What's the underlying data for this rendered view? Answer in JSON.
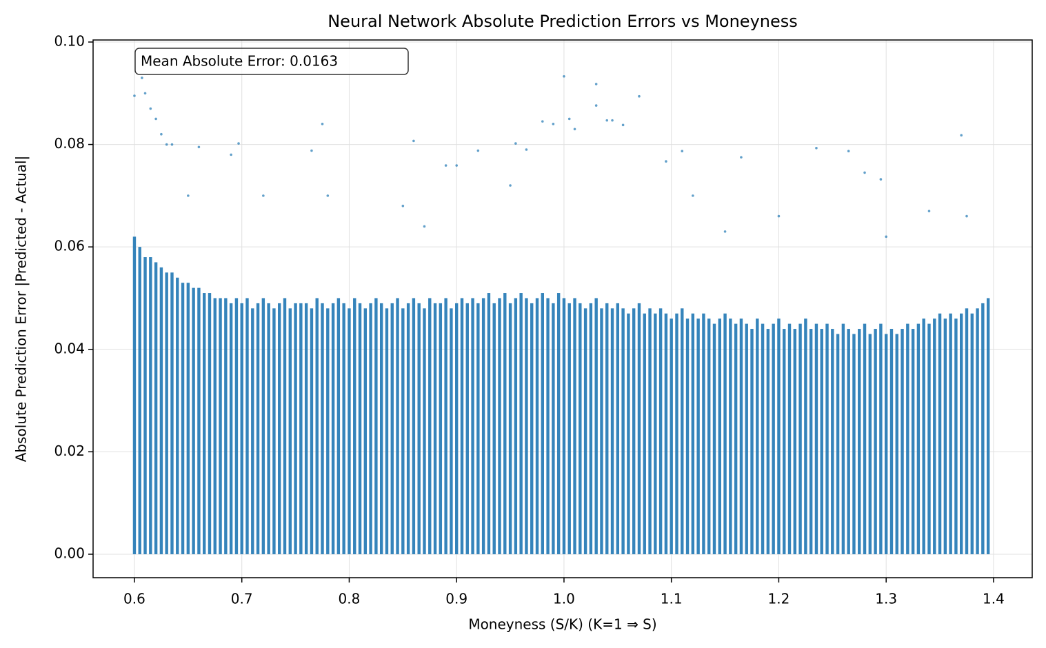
{
  "chart_data": {
    "type": "scatter",
    "title": "Neural Network Absolute Prediction Errors vs Moneyness",
    "x_label": "Moneyness (S/K)  (K=1 ⇒ S)",
    "y_label": "Absolute Prediction Error |Predicted - Actual|",
    "annotation": "Mean Absolute Error: 0.0163",
    "color": "#1f77b4",
    "grid": true,
    "xlim": [
      0.5615,
      1.436
    ],
    "ylim": [
      -0.00458,
      0.1004
    ],
    "xticks": [
      0.6,
      0.7,
      0.8,
      0.9,
      {
        "value": 1,
        "label": "1.0"
      },
      1.1,
      1.2,
      1.3,
      1.4
    ],
    "yticks": [
      {
        "value": 0,
        "label": "0.00"
      },
      {
        "value": 0.02,
        "label": "0.02"
      },
      {
        "value": 0.04,
        "label": "0.04"
      },
      {
        "value": 0.06,
        "label": "0.06"
      },
      {
        "value": 0.08,
        "label": "0.08"
      },
      {
        "value": 0.1,
        "label": "0.10"
      }
    ],
    "bands": {
      "x": [
        0.6,
        0.605,
        0.61,
        0.615,
        0.62,
        0.625,
        0.63,
        0.635,
        0.64,
        0.645,
        0.65,
        0.655,
        0.66,
        0.665,
        0.67,
        0.675,
        0.68,
        0.685,
        0.69,
        0.695,
        0.7,
        0.705,
        0.71,
        0.715,
        0.72,
        0.725,
        0.73,
        0.735,
        0.74,
        0.745,
        0.75,
        0.755,
        0.76,
        0.765,
        0.77,
        0.775,
        0.78,
        0.785,
        0.79,
        0.795,
        0.8,
        0.805,
        0.81,
        0.815,
        0.82,
        0.825,
        0.83,
        0.835,
        0.84,
        0.845,
        0.85,
        0.855,
        0.86,
        0.865,
        0.87,
        0.875,
        0.88,
        0.885,
        0.89,
        0.895,
        0.9,
        0.905,
        0.91,
        0.915,
        0.92,
        0.925,
        0.93,
        0.935,
        0.94,
        0.945,
        0.95,
        0.955,
        0.96,
        0.965,
        0.97,
        0.975,
        0.98,
        0.985,
        0.99,
        0.995,
        1.0,
        1.005,
        1.01,
        1.015,
        1.02,
        1.025,
        1.03,
        1.035,
        1.04,
        1.045,
        1.05,
        1.055,
        1.06,
        1.065,
        1.07,
        1.075,
        1.08,
        1.085,
        1.09,
        1.095,
        1.1,
        1.105,
        1.11,
        1.115,
        1.12,
        1.125,
        1.13,
        1.135,
        1.14,
        1.145,
        1.15,
        1.155,
        1.16,
        1.165,
        1.17,
        1.175,
        1.18,
        1.185,
        1.19,
        1.195,
        1.2,
        1.205,
        1.21,
        1.215,
        1.22,
        1.225,
        1.23,
        1.235,
        1.24,
        1.245,
        1.25,
        1.255,
        1.26,
        1.265,
        1.27,
        1.275,
        1.28,
        1.285,
        1.29,
        1.295,
        1.3,
        1.305,
        1.31,
        1.315,
        1.32,
        1.325,
        1.33,
        1.335,
        1.34,
        1.345,
        1.35,
        1.355,
        1.36,
        1.365,
        1.37,
        1.375,
        1.38,
        1.385,
        1.39,
        1.395
      ],
      "values": [
        0.062,
        0.06,
        0.058,
        0.058,
        0.057,
        0.056,
        0.055,
        0.055,
        0.054,
        0.053,
        0.053,
        0.052,
        0.052,
        0.051,
        0.051,
        0.05,
        0.05,
        0.05,
        0.049,
        0.05,
        0.049,
        0.05,
        0.048,
        0.049,
        0.05,
        0.049,
        0.048,
        0.049,
        0.05,
        0.048,
        0.049,
        0.049,
        0.049,
        0.048,
        0.05,
        0.049,
        0.048,
        0.049,
        0.05,
        0.049,
        0.048,
        0.05,
        0.049,
        0.048,
        0.049,
        0.05,
        0.049,
        0.048,
        0.049,
        0.05,
        0.048,
        0.049,
        0.05,
        0.049,
        0.048,
        0.05,
        0.049,
        0.049,
        0.05,
        0.048,
        0.049,
        0.05,
        0.049,
        0.05,
        0.049,
        0.05,
        0.051,
        0.049,
        0.05,
        0.051,
        0.049,
        0.05,
        0.051,
        0.05,
        0.049,
        0.05,
        0.051,
        0.05,
        0.049,
        0.051,
        0.05,
        0.049,
        0.05,
        0.049,
        0.048,
        0.049,
        0.05,
        0.048,
        0.049,
        0.048,
        0.049,
        0.048,
        0.047,
        0.048,
        0.049,
        0.047,
        0.048,
        0.047,
        0.048,
        0.047,
        0.046,
        0.047,
        0.048,
        0.046,
        0.047,
        0.046,
        0.047,
        0.046,
        0.045,
        0.046,
        0.047,
        0.046,
        0.045,
        0.046,
        0.045,
        0.044,
        0.046,
        0.045,
        0.044,
        0.045,
        0.046,
        0.044,
        0.045,
        0.044,
        0.045,
        0.046,
        0.044,
        0.045,
        0.044,
        0.045,
        0.044,
        0.043,
        0.045,
        0.044,
        0.043,
        0.044,
        0.045,
        0.043,
        0.044,
        0.045,
        0.043,
        0.044,
        0.043,
        0.044,
        0.045,
        0.044,
        0.045,
        0.046,
        0.045,
        0.046,
        0.047,
        0.046,
        0.047,
        0.046,
        0.047,
        0.048,
        0.047,
        0.048,
        0.049,
        0.05
      ]
    },
    "series": [
      {
        "color": "#1f77b4",
        "x": [
          0.6,
          0.607,
          0.61,
          0.615,
          0.62,
          0.625,
          0.63,
          0.635,
          0.66,
          0.69,
          0.697,
          0.765,
          0.775,
          0.86,
          0.89,
          0.9,
          0.92,
          0.955,
          0.965,
          0.98,
          0.99,
          1.0,
          1.005,
          1.01,
          1.03,
          1.03,
          1.04,
          1.045,
          1.055,
          1.07,
          1.095,
          1.11,
          1.165,
          1.235,
          1.265,
          1.28,
          1.295,
          1.37,
          1.375,
          1.3,
          0.72,
          0.78,
          0.85,
          0.95,
          1.12,
          1.2,
          1.34,
          0.65,
          0.87,
          1.15
        ],
        "values": [
          0.0895,
          0.093,
          0.09,
          0.087,
          0.085,
          0.082,
          0.08,
          0.08,
          0.0795,
          0.078,
          0.0802,
          0.0788,
          0.084,
          0.0807,
          0.0759,
          0.0759,
          0.0788,
          0.0802,
          0.079,
          0.0845,
          0.084,
          0.0933,
          0.085,
          0.083,
          0.0918,
          0.0876,
          0.0847,
          0.0847,
          0.0838,
          0.0894,
          0.0767,
          0.0787,
          0.0775,
          0.0793,
          0.0787,
          0.0745,
          0.0732,
          0.0818,
          0.066,
          0.062,
          0.07,
          0.07,
          0.068,
          0.072,
          0.07,
          0.066,
          0.067,
          0.07,
          0.064,
          0.063
        ]
      }
    ]
  }
}
